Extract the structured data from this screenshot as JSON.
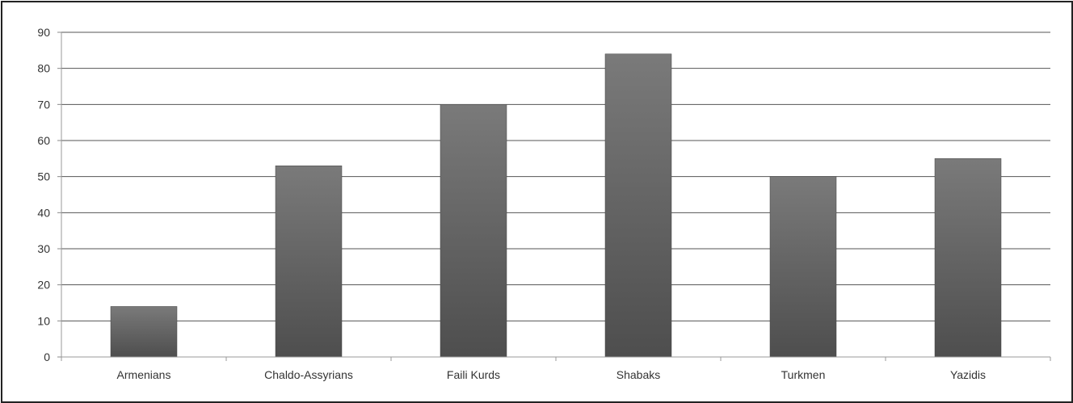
{
  "chart_data": {
    "type": "bar",
    "categories": [
      "Armenians",
      "Chaldo-Assyrians",
      "Faili Kurds",
      "Shabaks",
      "Turkmen",
      "Yazidis"
    ],
    "values": [
      14,
      53,
      70,
      84,
      50,
      55
    ],
    "title": "",
    "xlabel": "",
    "ylabel": "",
    "ylim": [
      0,
      90
    ],
    "yticks": [
      0,
      10,
      20,
      30,
      40,
      50,
      60,
      70,
      80,
      90
    ],
    "grid": true,
    "legend": "none",
    "bar_color_top": "#7a7a7a",
    "bar_color_bottom": "#4e4e4e",
    "grid_color": "#555555"
  }
}
